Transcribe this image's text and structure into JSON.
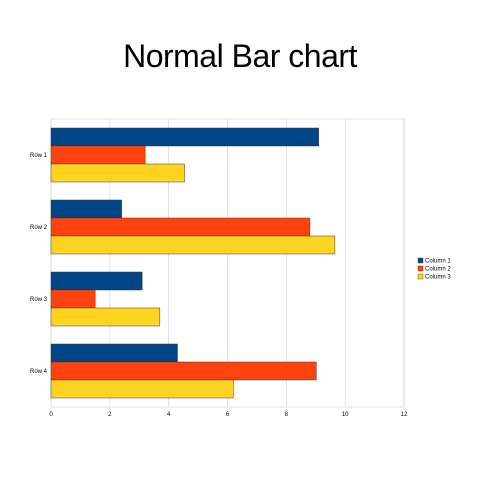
{
  "chart_data": {
    "type": "bar",
    "orientation": "horizontal",
    "title": "Normal Bar chart",
    "categories": [
      "Row 1",
      "Row 2",
      "Row 3",
      "Row 4"
    ],
    "series": [
      {
        "name": "Column 1",
        "values": [
          9.1,
          2.4,
          3.1,
          4.3
        ],
        "color": "#004586"
      },
      {
        "name": "Column 2",
        "values": [
          3.2,
          8.8,
          1.5,
          9.02
        ],
        "color": "#ff420e"
      },
      {
        "name": "Column 3",
        "values": [
          4.54,
          9.65,
          3.7,
          6.2
        ],
        "color": "#ffd320"
      }
    ],
    "xlim": [
      0,
      12
    ],
    "xticks": [
      "0",
      "2",
      "4",
      "6",
      "8",
      "10",
      "12"
    ],
    "grid": true,
    "legend_position": "right"
  }
}
